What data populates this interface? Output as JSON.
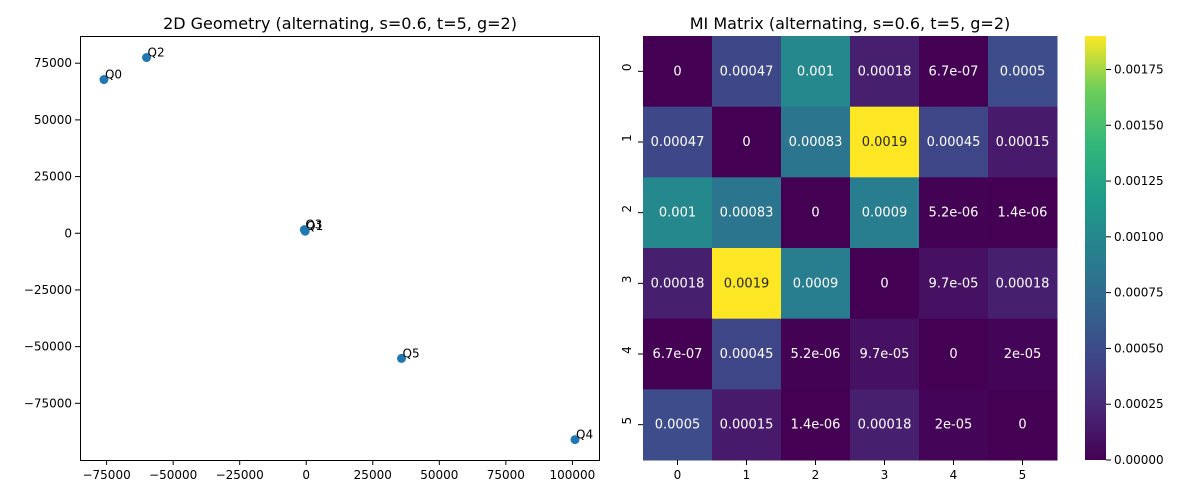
{
  "chart_data": [
    {
      "type": "scatter",
      "title": "2D Geometry (alternating, s=0.6, t=5, g=2)",
      "xlabel": "",
      "ylabel": "",
      "xlim": [
        -85000,
        110000
      ],
      "ylim": [
        -100000,
        87000
      ],
      "grid": false,
      "x_ticks": [
        -75000,
        -50000,
        -25000,
        0,
        25000,
        50000,
        75000,
        100000
      ],
      "y_ticks": [
        -75000,
        -50000,
        -25000,
        0,
        25000,
        50000,
        75000
      ],
      "x_tick_labels": [
        "−75000",
        "−50000",
        "−25000",
        "0",
        "25000",
        "50000",
        "75000",
        "100000"
      ],
      "y_tick_labels": [
        "−75000",
        "−50000",
        "−25000",
        "0",
        "25000",
        "50000",
        "75000"
      ],
      "marker_color": "#1f77b4",
      "points": [
        {
          "label": "Q0",
          "x": -76000,
          "y": 67800
        },
        {
          "label": "Q1",
          "x": -400,
          "y": 900
        },
        {
          "label": "Q2",
          "x": -60000,
          "y": 77500
        },
        {
          "label": "Q3",
          "x": -700,
          "y": 1600
        },
        {
          "label": "Q4",
          "x": 101000,
          "y": -91000
        },
        {
          "label": "Q5",
          "x": 35800,
          "y": -55200
        }
      ]
    },
    {
      "type": "heatmap",
      "title": "MI Matrix (alternating, s=0.6, t=5, g=2)",
      "colormap": "viridis",
      "row_labels": [
        "0",
        "1",
        "2",
        "3",
        "4",
        "5"
      ],
      "col_labels": [
        "0",
        "1",
        "2",
        "3",
        "4",
        "5"
      ],
      "values": [
        [
          0,
          0.00047,
          0.001,
          0.00018,
          6.7e-07,
          0.0005
        ],
        [
          0.00047,
          0,
          0.00083,
          0.0019,
          0.00045,
          0.00015
        ],
        [
          0.001,
          0.00083,
          0,
          0.0009,
          5.2e-06,
          1.4e-06
        ],
        [
          0.00018,
          0.0019,
          0.0009,
          0,
          9.7e-05,
          0.00018
        ],
        [
          6.7e-07,
          0.00045,
          5.2e-06,
          9.7e-05,
          0,
          2e-05
        ],
        [
          0.0005,
          0.00015,
          1.4e-06,
          0.00018,
          2e-05,
          0
        ]
      ],
      "annotations": [
        [
          "0",
          "0.00047",
          "0.001",
          "0.00018",
          "6.7e-07",
          "0.0005"
        ],
        [
          "0.00047",
          "0",
          "0.00083",
          "0.0019",
          "0.00045",
          "0.00015"
        ],
        [
          "0.001",
          "0.00083",
          "0",
          "0.0009",
          "5.2e-06",
          "1.4e-06"
        ],
        [
          "0.00018",
          "0.0019",
          "0.0009",
          "0",
          "9.7e-05",
          "0.00018"
        ],
        [
          "6.7e-07",
          "0.00045",
          "5.2e-06",
          "9.7e-05",
          "0",
          "2e-05"
        ],
        [
          "0.0005",
          "0.00015",
          "1.4e-06",
          "0.00018",
          "2e-05",
          "0"
        ]
      ],
      "vmin": 0,
      "vmax": 0.0019,
      "colorbar_ticks": [
        0,
        0.00025,
        0.0005,
        0.00075,
        0.001,
        0.00125,
        0.0015,
        0.00175
      ],
      "colorbar_tick_labels": [
        "0.00000",
        "0.00025",
        "0.00050",
        "0.00075",
        "0.00100",
        "0.00125",
        "0.00150",
        "0.00175"
      ]
    }
  ]
}
